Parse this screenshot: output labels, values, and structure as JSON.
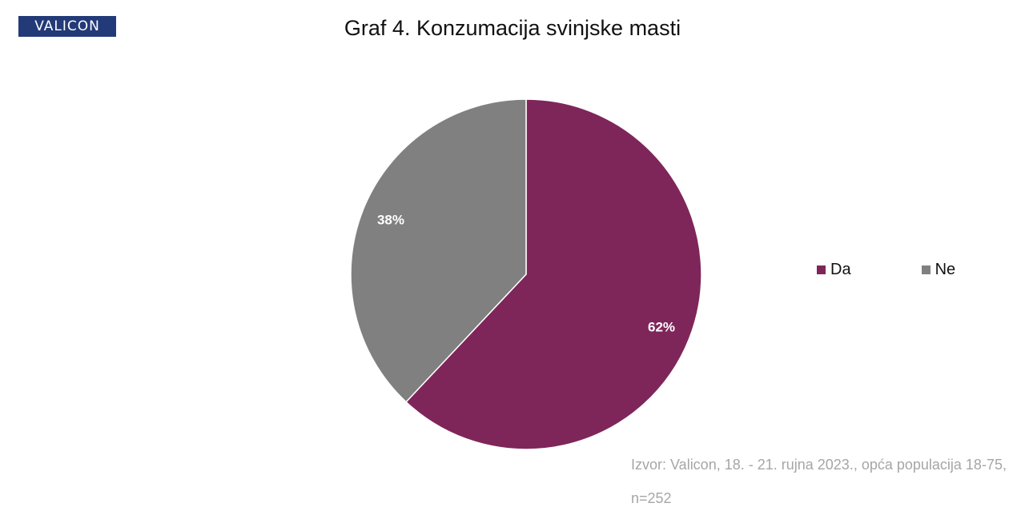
{
  "logo": {
    "text": "VALICON"
  },
  "chart_data": {
    "type": "pie",
    "title": "Graf 4. Konzumacija svinjske masti",
    "categories": [
      "Da",
      "Ne"
    ],
    "values": [
      62,
      38
    ],
    "labels": [
      "62%",
      "38%"
    ],
    "colors": [
      "#7e2659",
      "#808080"
    ],
    "legend_position": "right"
  },
  "source": {
    "line1": "Izvor: Valicon, 18. - 21. rujna 2023., opća populacija 18-75,",
    "line2": "n=252"
  }
}
